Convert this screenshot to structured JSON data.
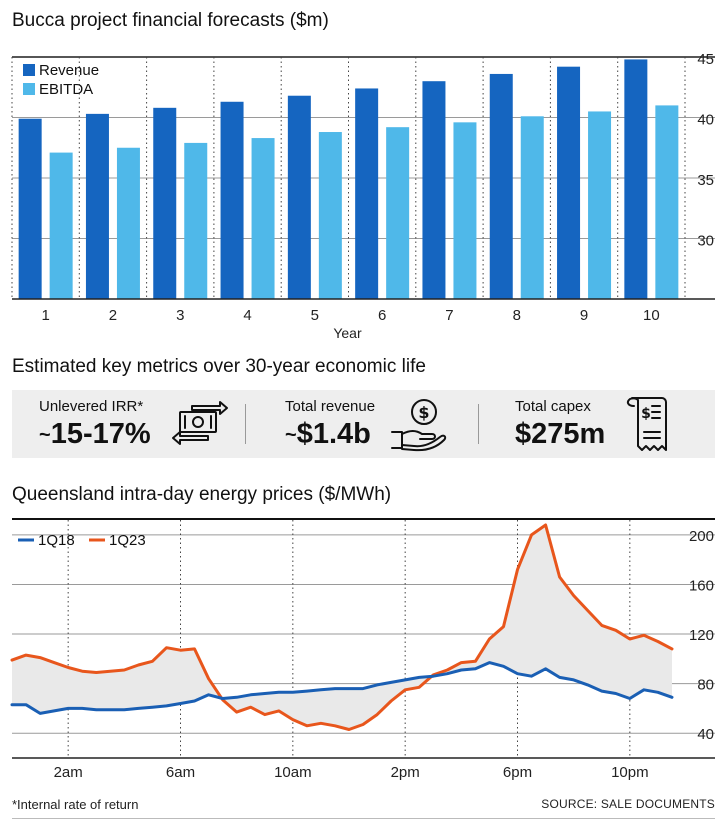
{
  "chart_data": [
    {
      "type": "bar",
      "title": "Bucca project financial forecasts ($m)",
      "xlabel": "Year",
      "ylabel": "",
      "ylim": [
        25,
        45
      ],
      "yticks": [
        30,
        35,
        40,
        45
      ],
      "categories": [
        "1",
        "2",
        "3",
        "4",
        "5",
        "6",
        "7",
        "8",
        "9",
        "10"
      ],
      "series": [
        {
          "name": "Revenue",
          "color": "#1565c0",
          "values": [
            39.9,
            40.3,
            40.8,
            41.3,
            41.8,
            42.4,
            43.0,
            43.6,
            44.2,
            44.8
          ]
        },
        {
          "name": "EBITDA",
          "color": "#4fb8e9",
          "values": [
            37.1,
            37.5,
            37.9,
            38.3,
            38.8,
            39.2,
            39.6,
            40.1,
            40.5,
            41.0
          ]
        }
      ],
      "legend": "top-left",
      "grid": true
    },
    {
      "type": "line",
      "title": "Queensland intra-day energy prices ($/MWh)",
      "xlabel": "",
      "ylabel": "",
      "ylim": [
        20,
        212
      ],
      "yticks": [
        40,
        80,
        120,
        160,
        200
      ],
      "xticks": [
        {
          "hour": 2,
          "label": "2am"
        },
        {
          "hour": 6,
          "label": "6am"
        },
        {
          "hour": 10,
          "label": "10am"
        },
        {
          "hour": 14,
          "label": "2pm"
        },
        {
          "hour": 18,
          "label": "6pm"
        },
        {
          "hour": 22,
          "label": "10pm"
        }
      ],
      "xlim": [
        0,
        24
      ],
      "x": [
        0.0,
        0.5,
        1.0,
        1.5,
        2.0,
        2.5,
        3.0,
        3.5,
        4.0,
        4.5,
        5.0,
        5.5,
        6.0,
        6.5,
        7.0,
        7.5,
        8.0,
        8.5,
        9.0,
        9.5,
        10.0,
        10.5,
        11.0,
        11.5,
        12.0,
        12.5,
        13.0,
        13.5,
        14.0,
        14.5,
        15.0,
        15.5,
        16.0,
        16.5,
        17.0,
        17.5,
        18.0,
        18.5,
        19.0,
        19.5,
        20.0,
        20.5,
        21.0,
        21.5,
        22.0,
        22.5,
        23.0,
        23.5
      ],
      "series": [
        {
          "name": "1Q18",
          "color": "#1a5fb4",
          "values": [
            63,
            63,
            56,
            58,
            60,
            60,
            59,
            59,
            59,
            60,
            61,
            62,
            64,
            66,
            71,
            68,
            69,
            71,
            72,
            73,
            73,
            74,
            75,
            76,
            76,
            76,
            79,
            81,
            83,
            85,
            86,
            88,
            91,
            92,
            97,
            94,
            88,
            86,
            92,
            85,
            83,
            79,
            74,
            72,
            68,
            75,
            73,
            69
          ]
        },
        {
          "name": "1Q23",
          "color": "#e8561c",
          "values": [
            99,
            103,
            101,
            97,
            93,
            90,
            89,
            90,
            91,
            95,
            98,
            109,
            107,
            108,
            84,
            67,
            57,
            61,
            55,
            58,
            51,
            46,
            48,
            46,
            43,
            47,
            55,
            66,
            75,
            77,
            87,
            91,
            97,
            98,
            116,
            126,
            172,
            200,
            208,
            166,
            151,
            139,
            127,
            123,
            116,
            119,
            114,
            108
          ]
        }
      ],
      "legend": "top-left",
      "grid": true,
      "shaded_between_series": true
    }
  ],
  "metrics": {
    "title": "Estimated key metrics over 30-year economic life",
    "items": [
      {
        "label": "Unlevered IRR*",
        "tilde": "~",
        "value": "15-17%",
        "icon": "money-exchange-icon"
      },
      {
        "label": "Total revenue",
        "tilde": "~",
        "value": "$1.4b",
        "icon": "coin-in-hand-icon"
      },
      {
        "label": "Total capex",
        "tilde": "",
        "value": "$275m",
        "icon": "invoice-receipt-icon"
      }
    ]
  },
  "footer": {
    "footnote": "*Internal rate of return",
    "source": "SOURCE: SALE DOCUMENTS"
  }
}
